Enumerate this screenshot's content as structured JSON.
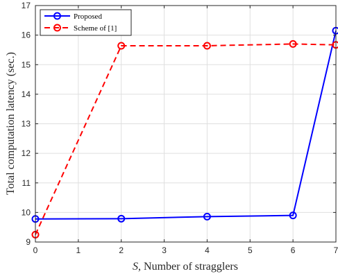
{
  "chart_data": {
    "type": "line",
    "xlabel_var": "S",
    "xlabel_text": ",  Number of stragglers",
    "ylabel": "Total computation latency (sec.)",
    "xlim": [
      0,
      7
    ],
    "ylim": [
      9,
      17
    ],
    "xticks": [
      0,
      1,
      2,
      3,
      4,
      5,
      6,
      7
    ],
    "yticks": [
      9,
      10,
      11,
      12,
      13,
      14,
      15,
      16,
      17
    ],
    "grid": true,
    "legend_position": "top-left",
    "series": [
      {
        "name": "Proposed",
        "color": "#0000ff",
        "line_style": "solid",
        "marker": "circle",
        "x": [
          0,
          2,
          4,
          6,
          7
        ],
        "y": [
          9.78,
          9.79,
          9.86,
          9.9,
          16.15
        ]
      },
      {
        "name": "Scheme of [1]",
        "color": "#ff0000",
        "line_style": "dashed",
        "marker": "circle",
        "x": [
          0,
          2,
          4,
          6,
          7
        ],
        "y": [
          9.25,
          15.64,
          15.64,
          15.7,
          15.67
        ]
      }
    ]
  }
}
